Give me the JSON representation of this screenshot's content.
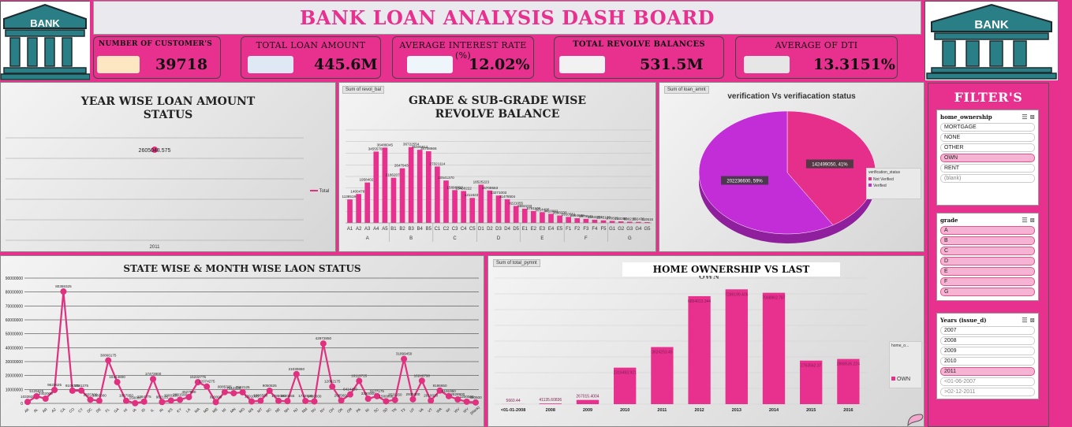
{
  "header": {
    "title": "BANK LOAN ANALYSIS DASH BOARD",
    "logo_text": "BANK"
  },
  "kpis": [
    {
      "label": "NUMBER OF CUSTOMER'S",
      "value": "39718",
      "icon": "people-icon"
    },
    {
      "label": "TOTAL LOAN AMOUNT",
      "value": "445.6M",
      "icon": "money-icon"
    },
    {
      "label": "AVERAGE INTEREST RATE (%)",
      "value": "12.02%",
      "icon": "chart-icon"
    },
    {
      "label": "TOTAL REVOLVE BALANCES",
      "value": "531.5M",
      "icon": "percent-icon"
    },
    {
      "label": "AVERAGE OF DTI",
      "value": "13.3151%",
      "icon": "house-icon"
    }
  ],
  "colors": {
    "pink": "#e8308f",
    "magenta": "#c72ed6",
    "line_pink": "#e0307f"
  },
  "filters": {
    "title": "FILTER'S",
    "home_ownership": {
      "header": "home_ownership",
      "items": [
        "MORTGAGE",
        "NONE",
        "OTHER",
        "OWN",
        "RENT",
        "(blank)"
      ],
      "selected": [
        "OWN"
      ]
    },
    "grade": {
      "header": "grade",
      "items": [
        "A",
        "B",
        "C",
        "D",
        "E",
        "F",
        "G"
      ],
      "selected": [
        "A",
        "B",
        "C",
        "D",
        "E",
        "F",
        "G"
      ]
    },
    "years": {
      "header": "Years (issue_d)",
      "items": [
        "2007",
        "2008",
        "2009",
        "2010",
        "2011",
        "<01-06-2007",
        ">02-12-2011"
      ],
      "selected": [
        "2011"
      ]
    }
  },
  "charts": {
    "year": {
      "title": "YEAR WISE LOAN AMOUNT STATUS",
      "legend": "Total",
      "chart_data": {
        "type": "line",
        "categories": [
          "2011"
        ],
        "values": [
          2605048.575
        ],
        "data_labels": [
          "2605048.575"
        ]
      }
    },
    "grade": {
      "tag": "Sum of revol_bal",
      "title": "GRADE & SUB-GRADE WISE REVOLVE BALANCE",
      "chart_data": {
        "type": "bar",
        "categories": [
          "A1",
          "A2",
          "A3",
          "A4",
          "A5",
          "B1",
          "B2",
          "B3",
          "B4",
          "B5",
          "C1",
          "C2",
          "C3",
          "C4",
          "C5",
          "D1",
          "D2",
          "D3",
          "D4",
          "D5",
          "E1",
          "E2",
          "E3",
          "E4",
          "E5",
          "F1",
          "F2",
          "F3",
          "F4",
          "F5",
          "G1",
          "G2",
          "G3",
          "G4",
          "G5"
        ],
        "groups": [
          "A",
          "B",
          "C",
          "D",
          "E",
          "F",
          "G"
        ],
        "values": [
          11385196,
          14004788,
          19584022,
          34555700,
          36486045,
          21862070,
          26479439,
          36722554,
          35405912,
          34708666,
          27321114,
          20541370,
          15896892,
          15458222,
          12116239,
          18525223,
          15708563,
          13271003,
          11478504,
          8221055,
          6882233,
          5791108,
          5214490,
          4410062,
          3598230,
          2910551,
          2304688,
          1979541,
          1563250,
          1245120,
          970822,
          760350,
          600210,
          502470,
          410515
        ],
        "data_labels": [
          "11385196",
          "14004788",
          "19584022",
          "34555700",
          "36486045",
          "21862070",
          "26479439",
          "36722554",
          "35405912",
          "34708666",
          "27321114",
          "20541370",
          "15896892",
          "15458222",
          "12116239",
          "18525223",
          "15708563",
          "13271003",
          "11478504",
          "8221055",
          "6882233",
          "5791108",
          "5214490",
          "4410062",
          "3598230",
          "2910551",
          "2304688",
          "1979541",
          "1563250",
          "1245120",
          "970822",
          "760350",
          "600210",
          "502470",
          "410515"
        ],
        "ylim": [
          0,
          45000000
        ]
      }
    },
    "verification": {
      "tag": "Sum of loan_amnt",
      "title": "verification Vs verifiacation status",
      "legend_title": "verification_status",
      "chart_data": {
        "type": "pie",
        "labels": [
          "Not Verified",
          "Verified"
        ],
        "values": [
          142499050,
          202236600
        ],
        "data_labels": [
          "142499050, 41%",
          "202236600, 59%"
        ],
        "colors": [
          "#e62e8b",
          "#c32dd8"
        ]
      }
    },
    "state": {
      "title": "STATE WISE & MONTH WISE LAON STATUS",
      "chart_data": {
        "type": "line",
        "categories": [
          "AK",
          "AL",
          "AR",
          "AZ",
          "CA",
          "CO",
          "CT",
          "DC",
          "DE",
          "FL",
          "GA",
          "HI",
          "IA",
          "ID",
          "IL",
          "IN",
          "KS",
          "KY",
          "LA",
          "MA",
          "MD",
          "ME",
          "MI",
          "MN",
          "MO",
          "MS",
          "MT",
          "NC",
          "NE",
          "NH",
          "NJ",
          "NM",
          "NV",
          "NY",
          "OH",
          "OK",
          "OR",
          "PA",
          "RI",
          "SC",
          "SD",
          "TN",
          "TX",
          "UT",
          "VA",
          "VT",
          "WA",
          "WI",
          "WV",
          "WY",
          "(blank)"
        ],
        "values": [
          1033925,
          5125625,
          3402000,
          9623625,
          80359325,
          9108375,
          9181375,
          2655300,
          1880000,
          30866175,
          15314800,
          1867950,
          150000,
          1264775,
          17473900,
          982125,
          2000150,
          2601500,
          4527590,
          15232775,
          12074275,
          920000,
          8085325,
          7312325,
          7962125,
          1391000,
          1886500,
          9050825,
          1786000,
          1620255,
          21030650,
          1732925,
          1400000,
          42972850,
          12062175,
          2085600,
          6414450,
          16119725,
          3320000,
          5177175,
          1500000,
          2531150,
          31899450,
          2935300,
          16246790,
          2010020,
          9186650,
          5191950,
          2828900,
          1200000,
          650500
        ],
        "data_labels": [
          "1033925",
          "5125625",
          "3402000",
          "9623625",
          "80359325",
          "9108375",
          "9181375",
          "2655300",
          "1880000",
          "30866175",
          "15314800",
          "1867950",
          "150000",
          "1264775",
          "17473900",
          "982125",
          "2000150",
          "2601500",
          "4527590",
          "15232775",
          "12074275",
          "920000",
          "8085325",
          "7312325",
          "7962125",
          "1391000",
          "1886500",
          "9050825",
          "1786000",
          "1620255",
          "21030650",
          "1732925",
          "1400000",
          "42972850",
          "12062175",
          "2085600",
          "6414450",
          "16119725",
          "3320000",
          "5177175",
          "1500000",
          "2531150",
          "31899450",
          "2935300",
          "16246790",
          "2010020",
          "9186650",
          "5191950",
          "2828900",
          "1200000",
          "650500"
        ],
        "y_ticks": [
          "0",
          "10000000",
          "20000000",
          "30000000",
          "40000000",
          "50000000",
          "60000000",
          "70000000",
          "80000000",
          "90000000"
        ],
        "ylim": [
          0,
          90000000
        ]
      }
    },
    "home": {
      "tag": "Sum of total_pymnt",
      "title": "HOME OWNERSHIP VS LAST",
      "title_overflow": "OWN",
      "legend_title": "home_o...",
      "legend": "OWN",
      "chart_data": {
        "type": "bar",
        "categories": [
          "<01-01-2008",
          "2008",
          "2009",
          "2010",
          "2011",
          "2012",
          "2013",
          "2014",
          "2015",
          "2016"
        ],
        "values": [
          5660.44,
          41135.60836,
          267015.4004,
          2316493.921,
          3624253.45,
          6854013.344,
          7286199.405,
          7068962.787,
          2763562.37,
          2868535.224
        ],
        "data_labels": [
          "5660.44",
          "41135.60836",
          "267015.4004",
          "2316493.921",
          "3624253.45",
          "6854013.344",
          "7286199.405",
          "7068962.787",
          "2763562.37",
          "2868535.224"
        ],
        "ylim": [
          0,
          8000000
        ]
      }
    }
  }
}
